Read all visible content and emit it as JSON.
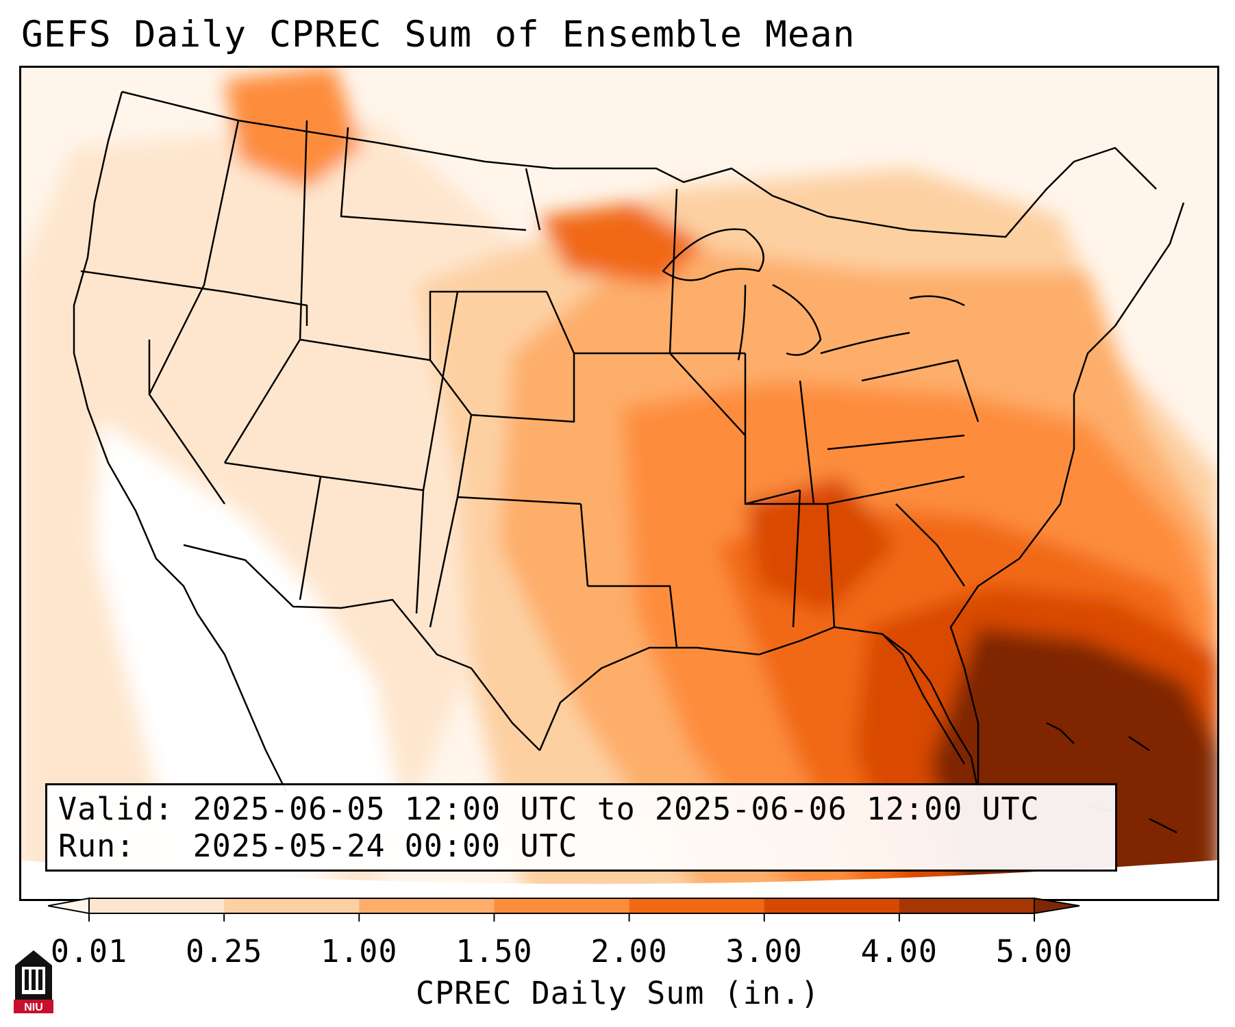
{
  "title": "GEFS Daily CPREC Sum of Ensemble Mean",
  "map": {
    "region": "Continental United States",
    "variable": "CPREC Daily Sum",
    "colors": {
      "land_none": "#ffffff",
      "ocean_light": "#fff5eb",
      "state_border": "#000000",
      "max_region": "#7f2704"
    }
  },
  "info": {
    "valid_label": "Valid:",
    "valid_value": "2025-06-05 12:00 UTC to 2025-06-06 12:00 UTC",
    "run_label": "Run:",
    "run_value": "2025-05-24 00:00 UTC"
  },
  "colorbar": {
    "label": "CPREC Daily Sum (in.)",
    "ticks": [
      "0.01",
      "0.25",
      "1.00",
      "1.50",
      "2.00",
      "3.00",
      "4.00",
      "5.00"
    ],
    "colors": [
      "#fff5eb",
      "#fee6ce",
      "#fdd0a2",
      "#fdae6b",
      "#fd8d3c",
      "#f16913",
      "#d94801",
      "#a63603",
      "#7f2704"
    ],
    "extend": "both"
  },
  "logo": {
    "text": "NIU",
    "colors": {
      "red": "#c8102e",
      "black": "#111111"
    }
  }
}
